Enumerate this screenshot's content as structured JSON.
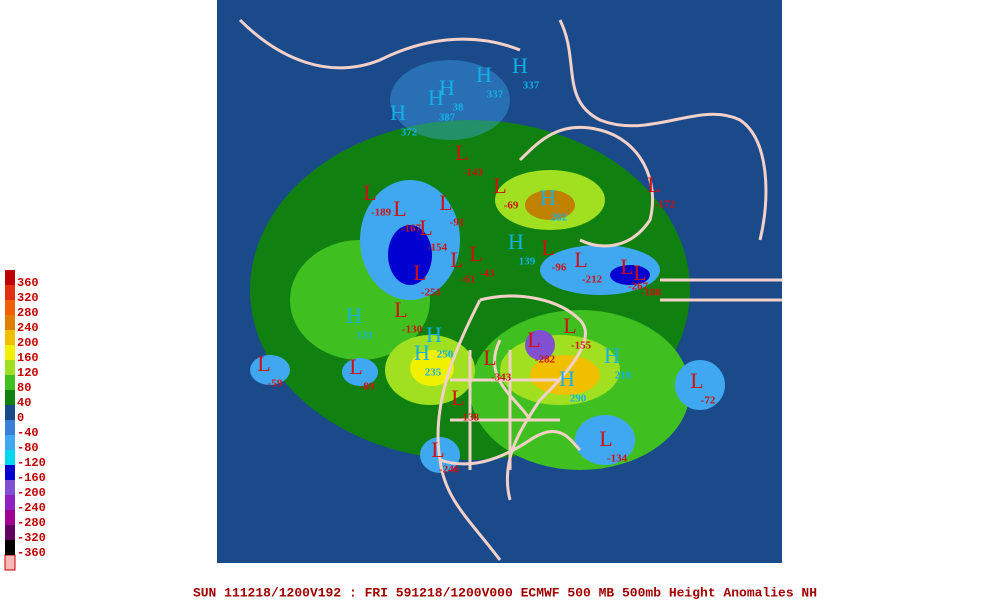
{
  "legend": {
    "labels": [
      360,
      320,
      280,
      240,
      200,
      160,
      120,
      80,
      40,
      0,
      -40,
      -80,
      -120,
      -160,
      -200,
      -240,
      -280,
      -320,
      -360
    ],
    "colors": [
      "#c00000",
      "#e03010",
      "#f06000",
      "#e08000",
      "#f0c000",
      "#f0f000",
      "#a0e020",
      "#40c020",
      "#108010",
      "#1a4a8a",
      "#3a80d8",
      "#40a8f0",
      "#00d8f0",
      "#0000d0",
      "#8050d0",
      "#9020c0",
      "#a00090",
      "#600060",
      "#000000"
    ]
  },
  "markers": [
    {
      "letter": "H",
      "value": 282
    },
    {
      "letter": "H",
      "value": 218
    },
    {
      "letter": "H",
      "value": 290
    },
    {
      "letter": "H",
      "value": 235
    },
    {
      "letter": "H",
      "value": 250
    },
    {
      "letter": "H",
      "value": 131
    },
    {
      "letter": "L",
      "value": -155
    },
    {
      "letter": "L",
      "value": -282
    },
    {
      "letter": "L",
      "value": -130
    },
    {
      "letter": "L",
      "value": -59
    },
    {
      "letter": "L",
      "value": -89
    },
    {
      "letter": "L",
      "value": -72
    },
    {
      "letter": "L",
      "value": -134
    },
    {
      "letter": "L",
      "value": -246
    },
    {
      "letter": "L",
      "value": -138
    },
    {
      "letter": "L",
      "value": -172
    },
    {
      "letter": "L",
      "value": -189
    },
    {
      "letter": "L",
      "value": -167
    },
    {
      "letter": "L",
      "value": -91
    },
    {
      "letter": "L",
      "value": -69
    },
    {
      "letter": "L",
      "value": -143
    },
    {
      "letter": "L",
      "value": -96
    },
    {
      "letter": "L",
      "value": -212
    },
    {
      "letter": "L",
      "value": -188
    },
    {
      "letter": "L",
      "value": -267
    },
    {
      "letter": "L",
      "value": -251
    },
    {
      "letter": "L",
      "value": -43
    },
    {
      "letter": "L",
      "value": -61
    },
    {
      "letter": "L",
      "value": -154
    },
    {
      "letter": "H",
      "value": 372
    },
    {
      "letter": "H",
      "value": 387
    },
    {
      "letter": "H",
      "value": 38
    },
    {
      "letter": "H",
      "value": 337
    },
    {
      "letter": "H",
      "value": 337
    },
    {
      "letter": "H",
      "value": 139
    },
    {
      "letter": "L",
      "value": -343
    }
  ],
  "footer": "SUN 111218/1200V192 : FRI 591218/1200V000  ECMWF  500 MB 500mb Height Anomalies NH"
}
